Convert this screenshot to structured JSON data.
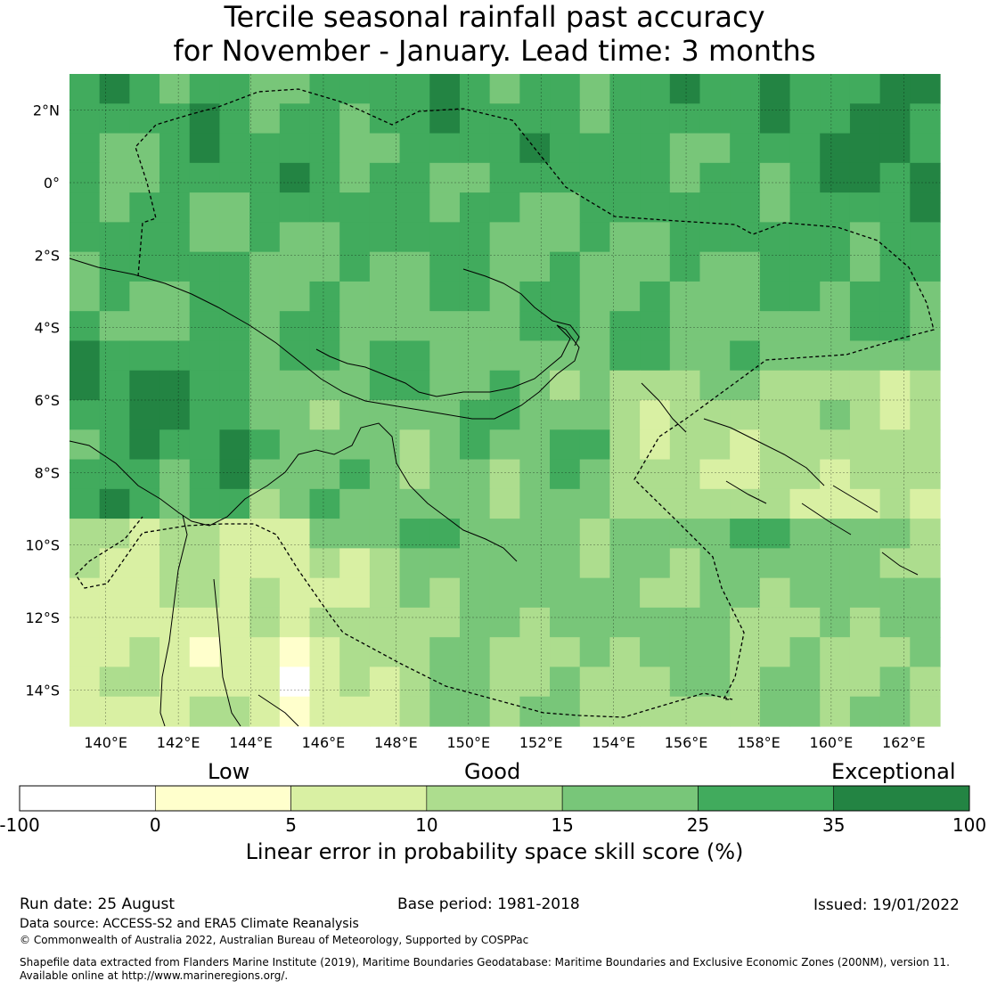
{
  "title_line1": "Tercile seasonal rainfall past accuracy",
  "title_line2": "for November - January. Lead time: 3 months",
  "map": {
    "lat_labels": [
      "2°N",
      "0°",
      "2°S",
      "4°S",
      "6°S",
      "8°S",
      "10°S",
      "12°S",
      "14°S"
    ],
    "lat_values": [
      2,
      0,
      -2,
      -4,
      -6,
      -8,
      -10,
      -12,
      -14
    ],
    "lon_labels": [
      "140°E",
      "142°E",
      "144°E",
      "146°E",
      "148°E",
      "150°E",
      "152°E",
      "154°E",
      "156°E",
      "158°E",
      "160°E",
      "162°E"
    ],
    "lon_values": [
      140,
      142,
      144,
      146,
      148,
      150,
      152,
      154,
      156,
      158,
      160,
      162
    ],
    "lon_range": [
      139,
      163
    ],
    "lat_range": [
      -15,
      3
    ],
    "grid": true
  },
  "colorbar": {
    "categories": [
      "Low",
      "Good",
      "Exceptional"
    ],
    "tick_labels": [
      "-100",
      "0",
      "5",
      "10",
      "15",
      "25",
      "35",
      "100"
    ],
    "colors": [
      "#ffffff",
      "#ffffcc",
      "#d9f0a3",
      "#addd8e",
      "#78c679",
      "#41ab5d",
      "#238443"
    ],
    "title": "Linear error in probability space skill score (%)"
  },
  "footer": {
    "run_date": "Run date: 25 August",
    "base_period": "Base period: 1981-2018",
    "issued": "Issued: 19/01/2022",
    "data_source": "Data source: ACCESS-S2 and ERA5 Climate Reanalysis",
    "copyright": "© Commonwealth of Australia 2022, Australian Bureau of Meteorology, Supported by COSPPac",
    "shapefile_line1": "Shapefile data extracted from Flanders Marine Institute (2019), Maritime Boundaries Geodatabase: Maritime Boundaries and Exclusive Economic Zones (200NM), version 11.",
    "shapefile_line2": "Available online at http://www.marineregions.org/."
  }
}
